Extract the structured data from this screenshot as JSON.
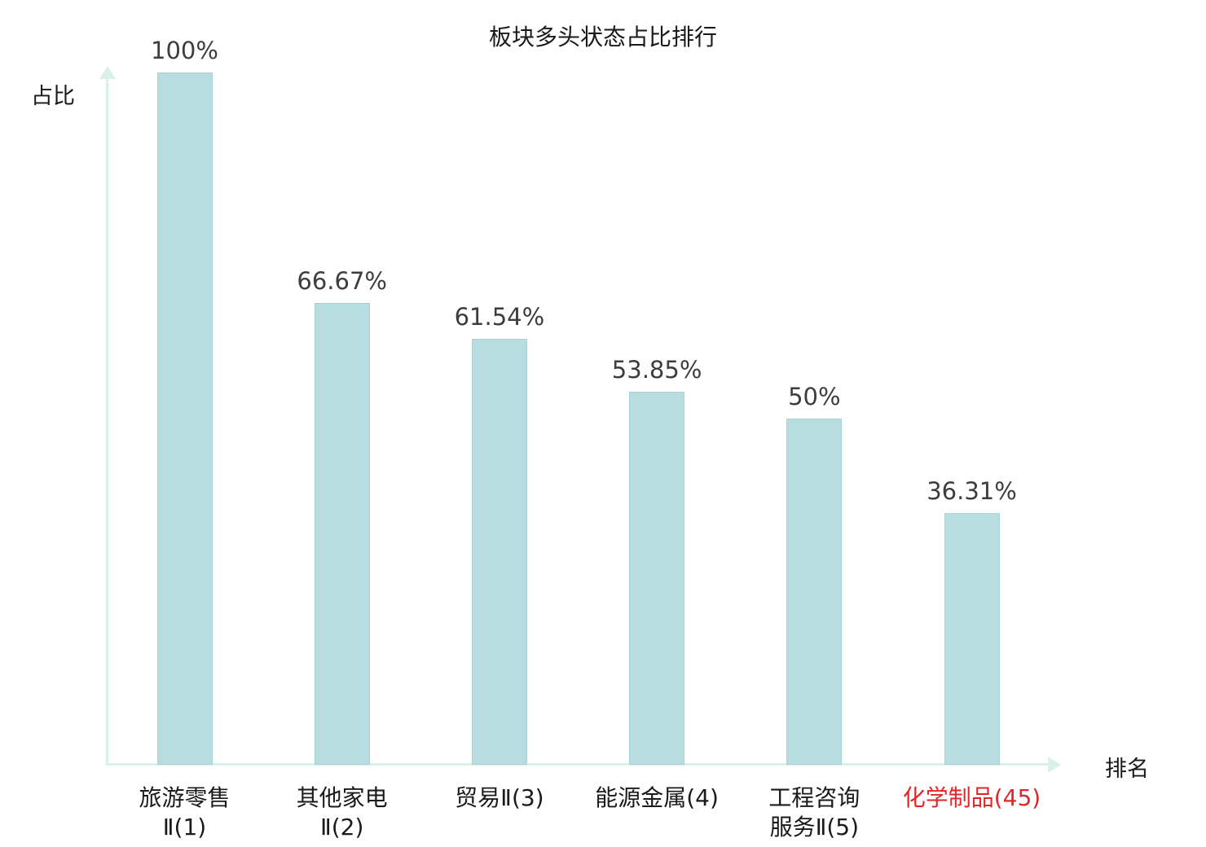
{
  "colors": {
    "bar_fill": "#b7dde1",
    "bar_border": "#a6d2d8",
    "axis": "#d9f1e6",
    "value_text": "#3d3d3d",
    "category_text": "#1a1a1a",
    "highlight_text": "#e02629"
  },
  "chart_data": {
    "type": "bar",
    "title": "板块多头状态占比排行",
    "xlabel": "排名",
    "ylabel": "占比",
    "ylim": [
      0,
      100
    ],
    "grid": false,
    "legend": false,
    "categories": [
      "旅游零售Ⅱ(1)",
      "其他家电Ⅱ(2)",
      "贸易Ⅱ(3)",
      "能源金属(4)",
      "工程咨询服务Ⅱ(5)",
      "化学制品(45)"
    ],
    "values": [
      100,
      66.67,
      61.54,
      53.85,
      50,
      36.31
    ],
    "bars": [
      {
        "label_lines": [
          "旅游零售",
          "Ⅱ(1)"
        ],
        "value": 100,
        "value_label": "100%",
        "highlight": false
      },
      {
        "label_lines": [
          "其他家电",
          "Ⅱ(2)"
        ],
        "value": 66.67,
        "value_label": "66.67%",
        "highlight": false
      },
      {
        "label_lines": [
          "贸易Ⅱ(3)"
        ],
        "value": 61.54,
        "value_label": "61.54%",
        "highlight": false
      },
      {
        "label_lines": [
          "能源金属(4)"
        ],
        "value": 53.85,
        "value_label": "53.85%",
        "highlight": false
      },
      {
        "label_lines": [
          "工程咨询",
          "服务Ⅱ(5)"
        ],
        "value": 50,
        "value_label": "50%",
        "highlight": false
      },
      {
        "label_lines": [
          "化学制品(45)"
        ],
        "value": 36.31,
        "value_label": "36.31%",
        "highlight": true
      }
    ]
  }
}
